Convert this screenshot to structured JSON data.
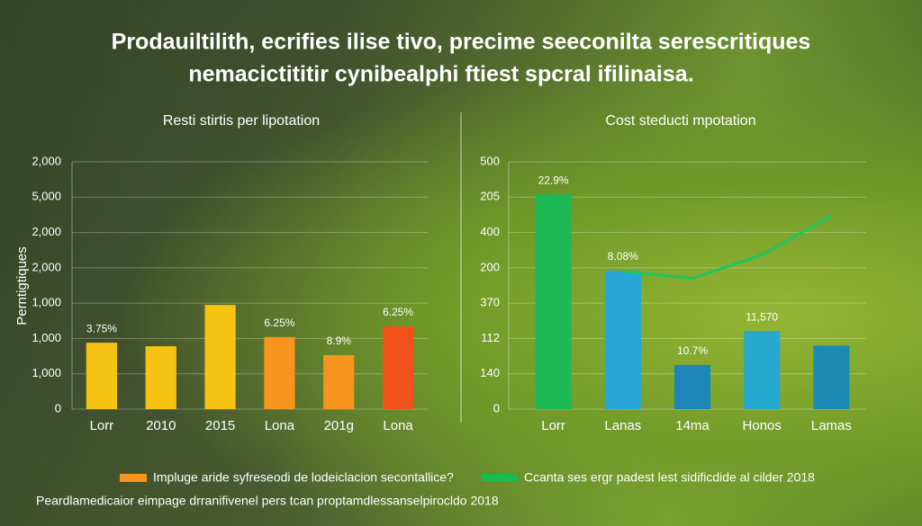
{
  "title_lines": [
    "Prodauiltilith, ecrifies ilise tivo, precime seeconilta serescritiques",
    "nemacictititir cynibealphi ftiest spcral ifilinaisa."
  ],
  "chart_data": [
    {
      "type": "bar",
      "title": "Resti stirtis per lipotation",
      "ylabel": "Perntigtiques",
      "ylim": [
        0,
        7
      ],
      "yticks": [
        0,
        1,
        2,
        3,
        4,
        5,
        6,
        7
      ],
      "ytick_labels": [
        "0",
        "1,000",
        "1,000",
        "1,000",
        "2,000",
        "2,000",
        "5,000",
        "2,000"
      ],
      "categories": [
        "Lorr",
        "2010",
        "2015",
        "Lona",
        "201g",
        "Lona"
      ],
      "values": [
        1.88,
        1.78,
        2.95,
        2.04,
        1.53,
        2.34
      ],
      "colors": [
        "#f6c315",
        "#f6c315",
        "#f6c315",
        "#f7941d",
        "#f7941d",
        "#f2511b"
      ],
      "value_labels": [
        "3.75%",
        null,
        null,
        "6.25%",
        "8.9%",
        "6.25%"
      ]
    },
    {
      "type": "bar",
      "title": "Cost steducti mpotation",
      "ylim": [
        0,
        7
      ],
      "yticks": [
        0,
        1,
        2,
        3,
        4,
        5,
        6,
        7
      ],
      "ytick_labels": [
        "0",
        "140",
        "112",
        "370",
        "200",
        "400",
        "205",
        "500"
      ],
      "categories": [
        "Lorr",
        "Lanas",
        "14ma",
        "Honos",
        "Lamas"
      ],
      "values": [
        6.08,
        3.92,
        1.25,
        2.21,
        1.8
      ],
      "colors": [
        "#1db954",
        "#2aa6d6",
        "#1c86b8",
        "#25a9cf",
        "#1c8cb6"
      ],
      "value_labels": [
        "22.9%",
        "8.08%",
        "10.7%",
        "11,570",
        null
      ],
      "line": {
        "color": "#22c55e",
        "values": [
          null,
          3.9,
          3.7,
          4.37,
          5.47
        ]
      }
    }
  ],
  "legend": [
    {
      "label": "Impluge aride syfreseodi de lodeiclacion secontallice?",
      "color": "#f7941d"
    },
    {
      "label": "Ccanta ses ergr padest lest sidificdide al cilder 2018",
      "color": "#1db954"
    }
  ],
  "footer": "Peardlamedicaior eimpage drranifivenel pers tcan proptamdlessanselpirocldo 2018"
}
